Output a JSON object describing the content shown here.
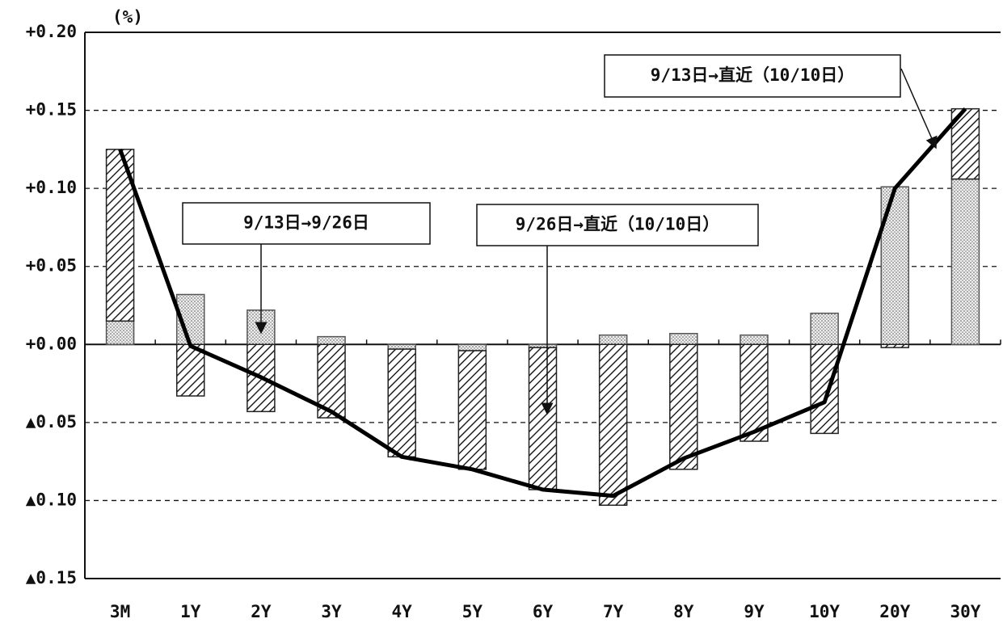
{
  "chart_data": {
    "type": "bar",
    "y_unit": "(%)",
    "categories": [
      "3M",
      "1Y",
      "2Y",
      "3Y",
      "4Y",
      "5Y",
      "6Y",
      "7Y",
      "8Y",
      "9Y",
      "10Y",
      "20Y",
      "30Y"
    ],
    "series": [
      {
        "name": "9/13日→9/26日",
        "type": "bar",
        "pattern": "dots",
        "color": "#555555",
        "values": [
          0.015,
          0.032,
          0.022,
          0.005,
          -0.003,
          -0.004,
          -0.002,
          0.006,
          0.007,
          0.006,
          0.02,
          0.101,
          0.106
        ]
      },
      {
        "name": "9/26日→直近（10/10日）",
        "type": "bar",
        "pattern": "hatch",
        "color": "#222222",
        "values": [
          0.11,
          -0.033,
          -0.043,
          -0.047,
          -0.069,
          -0.076,
          -0.091,
          -0.103,
          -0.08,
          -0.062,
          -0.057,
          -0.002,
          0.045
        ]
      },
      {
        "name": "9/13日→直近（10/10日）",
        "type": "line",
        "color": "#000000",
        "values": [
          0.125,
          -0.001,
          -0.021,
          -0.043,
          -0.072,
          -0.08,
          -0.093,
          -0.097,
          -0.073,
          -0.056,
          -0.037,
          0.1,
          0.151
        ]
      }
    ],
    "ylim": [
      -0.15,
      0.2
    ],
    "yticks": [
      {
        "value": 0.2,
        "label": "+0.20"
      },
      {
        "value": 0.15,
        "label": "+0.15"
      },
      {
        "value": 0.1,
        "label": "+0.10"
      },
      {
        "value": 0.05,
        "label": "+0.05"
      },
      {
        "value": 0,
        "label": "+0.00"
      },
      {
        "value": -0.05,
        "label": "▲0.05"
      },
      {
        "value": -0.1,
        "label": "▲0.10"
      },
      {
        "value": -0.15,
        "label": "▲0.15"
      }
    ],
    "grid": true
  }
}
